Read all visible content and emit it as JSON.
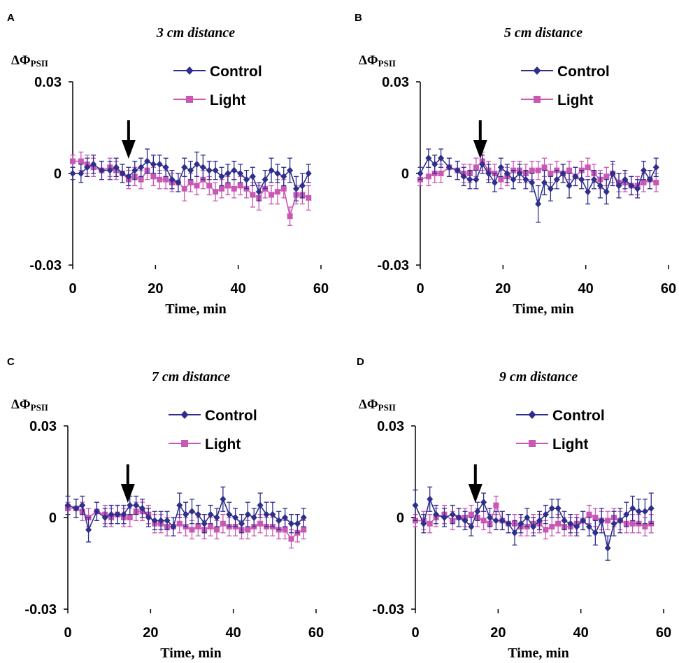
{
  "colors": {
    "control": "#2e2e8c",
    "light": "#c957b4",
    "arrow": "#000000",
    "axis": "#000000"
  },
  "chart_data": [
    {
      "type": "line",
      "panel": "A",
      "title": "3 cm distance",
      "ylabel_main": "ΔΦ",
      "ylabel_sub": "PSII",
      "xlabel": "Time, min",
      "xlim": [
        0,
        60
      ],
      "ylim": [
        -0.03,
        0.03
      ],
      "xticks": [
        "0",
        "20",
        "40",
        "60"
      ],
      "yticks": [
        "0.03",
        "0",
        "-0.03"
      ],
      "arrow_x": 13.5,
      "series": [
        {
          "name": "Control",
          "marker": "diamond",
          "x": [
            0,
            2,
            3.5,
            5,
            7,
            9,
            10.5,
            12,
            13.5,
            15,
            16.5,
            18,
            19.5,
            21,
            22.5,
            24,
            25.5,
            27,
            28.5,
            30,
            31.5,
            33,
            34.5,
            36,
            37.5,
            39,
            40.5,
            42,
            43.5,
            45,
            46.5,
            48,
            49.5,
            51,
            52.5,
            54,
            55.5,
            57
          ],
          "y": [
            0,
            0,
            0.002,
            0.003,
            0.001,
            0.001,
            0.002,
            0,
            -0.001,
            0.001,
            0.002,
            0.004,
            0.003,
            0.003,
            0.002,
            -0.002,
            -0.003,
            0.002,
            0.001,
            0.003,
            0.002,
            0.001,
            0.001,
            -0.001,
            0,
            0.001,
            0,
            -0.002,
            -0.001,
            -0.006,
            -0.002,
            0.001,
            0,
            -0.001,
            0.001,
            -0.005,
            -0.004,
            0
          ],
          "err": [
            0.002,
            0.003,
            0.003,
            0.003,
            0.003,
            0.003,
            0.003,
            0.003,
            0.003,
            0.003,
            0.003,
            0.004,
            0.003,
            0.003,
            0.003,
            0.003,
            0.003,
            0.003,
            0.003,
            0.004,
            0.004,
            0.003,
            0.003,
            0.003,
            0.003,
            0.003,
            0.003,
            0.003,
            0.003,
            0.003,
            0.003,
            0.004,
            0.003,
            0.003,
            0.004,
            0.004,
            0.004,
            0.003
          ]
        },
        {
          "name": "Light",
          "marker": "square",
          "x": [
            0,
            2,
            3.5,
            5,
            7,
            9,
            10.5,
            12,
            13.5,
            15,
            16.5,
            18,
            19.5,
            21,
            22.5,
            24,
            25.5,
            27,
            28.5,
            30,
            31.5,
            33,
            34.5,
            36,
            37.5,
            39,
            40.5,
            42,
            43.5,
            45,
            46.5,
            48,
            49.5,
            51,
            52.5,
            54,
            55.5,
            57
          ],
          "y": [
            0.004,
            0.004,
            0.003,
            0.002,
            0.001,
            0.002,
            0.001,
            0,
            -0.002,
            -0.001,
            -0.002,
            0.001,
            -0.001,
            -0.002,
            -0.002,
            -0.003,
            -0.003,
            -0.005,
            -0.003,
            -0.004,
            -0.002,
            -0.004,
            -0.006,
            -0.005,
            -0.004,
            -0.005,
            -0.004,
            -0.005,
            -0.007,
            -0.008,
            -0.005,
            -0.007,
            -0.006,
            -0.005,
            -0.014,
            -0.007,
            -0.007,
            -0.008
          ],
          "err": [
            0.002,
            0.003,
            0.003,
            0.003,
            0.003,
            0.003,
            0.003,
            0.003,
            0.003,
            0.003,
            0.003,
            0.003,
            0.003,
            0.003,
            0.003,
            0.003,
            0.003,
            0.004,
            0.003,
            0.003,
            0.003,
            0.003,
            0.003,
            0.003,
            0.003,
            0.003,
            0.003,
            0.003,
            0.004,
            0.004,
            0.003,
            0.003,
            0.004,
            0.003,
            0.003,
            0.003,
            0.003,
            0.004
          ]
        }
      ]
    },
    {
      "type": "line",
      "panel": "B",
      "title": "5 cm distance",
      "ylabel_main": "ΔΦ",
      "ylabel_sub": "PSII",
      "xlabel": "Time, min",
      "xlim": [
        0,
        60
      ],
      "ylim": [
        -0.03,
        0.03
      ],
      "xticks": [
        "0",
        "20",
        "40",
        "60"
      ],
      "yticks": [
        "0.03",
        "0",
        "-0.03"
      ],
      "arrow_x": 14.5,
      "series": [
        {
          "name": "Control",
          "marker": "diamond",
          "x": [
            0,
            2,
            3.5,
            5,
            7,
            9,
            10.5,
            12,
            13.5,
            15,
            16.5,
            18,
            19.5,
            21,
            22.5,
            24,
            25.5,
            27,
            28.5,
            30,
            31.5,
            33,
            34.5,
            36,
            37.5,
            39,
            40.5,
            42,
            43.5,
            45,
            46.5,
            48,
            49.5,
            51,
            52.5,
            54,
            55.5,
            57
          ],
          "y": [
            0,
            0.005,
            0.003,
            0.005,
            0.002,
            0.001,
            -0.001,
            -0.002,
            -0.002,
            0.003,
            0,
            -0.003,
            0.002,
            0,
            -0.002,
            0,
            -0.002,
            -0.003,
            -0.01,
            -0.003,
            -0.005,
            -0.002,
            0,
            -0.004,
            -0.001,
            -0.002,
            -0.006,
            -0.002,
            -0.004,
            -0.006,
            0,
            -0.004,
            -0.002,
            -0.004,
            -0.005,
            0.001,
            -0.002,
            0.002
          ],
          "err": [
            0.002,
            0.003,
            0.003,
            0.003,
            0.003,
            0.003,
            0.003,
            0.003,
            0.003,
            0.003,
            0.003,
            0.003,
            0.003,
            0.003,
            0.003,
            0.003,
            0.003,
            0.003,
            0.006,
            0.004,
            0.004,
            0.003,
            0.003,
            0.004,
            0.003,
            0.003,
            0.004,
            0.003,
            0.004,
            0.004,
            0.004,
            0.004,
            0.003,
            0.003,
            0.003,
            0.003,
            0.003,
            0.003
          ]
        },
        {
          "name": "Light",
          "marker": "square",
          "x": [
            0,
            2,
            3.5,
            5,
            7,
            9,
            10.5,
            12,
            13.5,
            15,
            16.5,
            18,
            19.5,
            21,
            22.5,
            24,
            25.5,
            27,
            28.5,
            30,
            31.5,
            33,
            34.5,
            36,
            37.5,
            39,
            40.5,
            42,
            43.5,
            45,
            46.5,
            48,
            49.5,
            51,
            52.5,
            54,
            55.5,
            57
          ],
          "y": [
            -0.002,
            -0.001,
            0,
            0,
            0.002,
            0.001,
            0,
            0,
            0.002,
            0.004,
            0.001,
            0,
            -0.002,
            -0.001,
            0.001,
            0.001,
            0,
            0.001,
            0.001,
            0.002,
            0,
            0.001,
            0,
            0.001,
            -0.001,
            0.001,
            0.002,
            0,
            -0.002,
            -0.001,
            0,
            -0.003,
            -0.003,
            -0.004,
            -0.004,
            -0.003,
            -0.002,
            -0.003
          ],
          "err": [
            0.002,
            0.003,
            0.003,
            0.003,
            0.003,
            0.003,
            0.003,
            0.003,
            0.003,
            0.003,
            0.003,
            0.003,
            0.003,
            0.003,
            0.003,
            0.003,
            0.003,
            0.003,
            0.003,
            0.003,
            0.003,
            0.003,
            0.003,
            0.003,
            0.003,
            0.003,
            0.003,
            0.003,
            0.003,
            0.003,
            0.003,
            0.003,
            0.003,
            0.003,
            0.003,
            0.003,
            0.003,
            0.003
          ]
        }
      ]
    },
    {
      "type": "line",
      "panel": "C",
      "title": "7 cm distance",
      "ylabel_main": "ΔΦ",
      "ylabel_sub": "PSII",
      "xlabel": "Time, min",
      "xlim": [
        0,
        60
      ],
      "ylim": [
        -0.03,
        0.03
      ],
      "xticks": [
        "0",
        "20",
        "40",
        "60"
      ],
      "yticks": [
        "0.03",
        "0",
        "-0.03"
      ],
      "arrow_x": 14.5,
      "series": [
        {
          "name": "Control",
          "marker": "diamond",
          "x": [
            0,
            2,
            3.5,
            5,
            7,
            9,
            10.5,
            12,
            13.5,
            15,
            16.5,
            18,
            19.5,
            21,
            22.5,
            24,
            25.5,
            27,
            28.5,
            30,
            31.5,
            33,
            34.5,
            36,
            37.5,
            39,
            40.5,
            42,
            43.5,
            45,
            46.5,
            48,
            49.5,
            51,
            52.5,
            54,
            55.5,
            57
          ],
          "y": [
            0.004,
            0.003,
            0.004,
            -0.004,
            0.002,
            0,
            0.001,
            0.001,
            0.001,
            0.004,
            0.004,
            0.003,
            0,
            -0.001,
            -0.001,
            -0.001,
            -0.003,
            0.004,
            0.001,
            0.002,
            0.001,
            -0.002,
            0.001,
            0,
            0.006,
            0.001,
            0,
            -0.002,
            0.001,
            0,
            0.004,
            0.001,
            0.001,
            -0.001,
            0,
            -0.002,
            -0.002,
            0
          ],
          "err": [
            0.003,
            0.003,
            0.003,
            0.004,
            0.003,
            0.003,
            0.003,
            0.003,
            0.003,
            0.003,
            0.003,
            0.003,
            0.003,
            0.003,
            0.003,
            0.003,
            0.003,
            0.004,
            0.004,
            0.004,
            0.003,
            0.003,
            0.003,
            0.003,
            0.004,
            0.004,
            0.003,
            0.003,
            0.004,
            0.003,
            0.004,
            0.004,
            0.004,
            0.003,
            0.003,
            0.003,
            0.003,
            0.003
          ]
        },
        {
          "name": "Light",
          "marker": "square",
          "x": [
            0,
            2,
            3.5,
            5,
            7,
            9,
            10.5,
            12,
            13.5,
            15,
            16.5,
            18,
            19.5,
            21,
            22.5,
            24,
            25.5,
            27,
            28.5,
            30,
            31.5,
            33,
            34.5,
            36,
            37.5,
            39,
            40.5,
            42,
            43.5,
            45,
            46.5,
            48,
            49.5,
            51,
            52.5,
            54,
            55.5,
            57
          ],
          "y": [
            0.003,
            0.003,
            0.002,
            0,
            0.002,
            0.001,
            0,
            0.001,
            0,
            0,
            0.002,
            0.002,
            0.001,
            -0.002,
            -0.002,
            -0.003,
            -0.003,
            -0.002,
            -0.003,
            -0.004,
            -0.003,
            -0.004,
            -0.003,
            -0.004,
            -0.002,
            -0.003,
            -0.003,
            -0.004,
            -0.004,
            -0.003,
            -0.002,
            -0.003,
            -0.003,
            -0.004,
            -0.004,
            -0.007,
            -0.005,
            -0.004
          ],
          "err": [
            0.002,
            0.003,
            0.003,
            0.003,
            0.003,
            0.003,
            0.003,
            0.003,
            0.003,
            0.003,
            0.003,
            0.003,
            0.003,
            0.003,
            0.003,
            0.003,
            0.003,
            0.003,
            0.003,
            0.003,
            0.003,
            0.003,
            0.003,
            0.003,
            0.003,
            0.003,
            0.003,
            0.003,
            0.003,
            0.003,
            0.003,
            0.003,
            0.003,
            0.003,
            0.003,
            0.003,
            0.003,
            0.003
          ]
        }
      ]
    },
    {
      "type": "line",
      "panel": "D",
      "title": "9 cm distance",
      "ylabel_main": "ΔΦ",
      "ylabel_sub": "PSII",
      "xlabel": "Time, min",
      "xlim": [
        0,
        60
      ],
      "ylim": [
        -0.03,
        0.03
      ],
      "xticks": [
        "0",
        "20",
        "40",
        "60"
      ],
      "yticks": [
        "0.03",
        "0",
        "-0.03"
      ],
      "arrow_x": 14.5,
      "series": [
        {
          "name": "Control",
          "marker": "diamond",
          "x": [
            0,
            2,
            3.5,
            5,
            7,
            9,
            10.5,
            12,
            13.5,
            15,
            16.5,
            18,
            19.5,
            21,
            22.5,
            24,
            25.5,
            27,
            28.5,
            30,
            31.5,
            33,
            34.5,
            36,
            37.5,
            39,
            40.5,
            42,
            43.5,
            45,
            46.5,
            48,
            49.5,
            51,
            52.5,
            54,
            55.5,
            57
          ],
          "y": [
            0.004,
            -0.002,
            0.006,
            0.001,
            0,
            0.001,
            0,
            -0.001,
            -0.003,
            0.002,
            0.005,
            0,
            -0.001,
            -0.001,
            -0.002,
            -0.005,
            -0.002,
            0,
            -0.003,
            -0.001,
            0.001,
            0.003,
            0.003,
            -0.001,
            -0.002,
            -0.003,
            -0.001,
            -0.003,
            -0.005,
            -0.001,
            -0.01,
            -0.002,
            -0.001,
            0.001,
            0.003,
            0.002,
            0.002,
            0.003
          ],
          "err": [
            0.005,
            0.003,
            0.004,
            0.003,
            0.003,
            0.003,
            0.003,
            0.003,
            0.003,
            0.003,
            0.003,
            0.003,
            0.003,
            0.003,
            0.003,
            0.004,
            0.003,
            0.003,
            0.003,
            0.003,
            0.003,
            0.003,
            0.003,
            0.003,
            0.003,
            0.003,
            0.003,
            0.003,
            0.004,
            0.004,
            0.004,
            0.004,
            0.004,
            0.004,
            0.004,
            0.004,
            0.004,
            0.005
          ]
        },
        {
          "name": "Light",
          "marker": "square",
          "x": [
            0,
            2,
            3.5,
            5,
            7,
            9,
            10.5,
            12,
            13.5,
            15,
            16.5,
            18,
            19.5,
            21,
            22.5,
            24,
            25.5,
            27,
            28.5,
            30,
            31.5,
            33,
            34.5,
            36,
            37.5,
            39,
            40.5,
            42,
            43.5,
            45,
            46.5,
            48,
            49.5,
            51,
            52.5,
            54,
            55.5,
            57
          ],
          "y": [
            -0.001,
            -0.001,
            -0.002,
            0,
            0.001,
            -0.001,
            0,
            0,
            0.001,
            0,
            -0.001,
            -0.002,
            0.004,
            -0.001,
            -0.002,
            -0.002,
            -0.003,
            -0.003,
            -0.002,
            -0.002,
            -0.004,
            -0.003,
            -0.002,
            -0.003,
            -0.003,
            -0.002,
            -0.001,
            0.001,
            0,
            -0.001,
            -0.001,
            0,
            -0.001,
            -0.002,
            -0.002,
            -0.002,
            -0.003,
            -0.002
          ],
          "err": [
            0.002,
            0.003,
            0.003,
            0.003,
            0.003,
            0.003,
            0.003,
            0.003,
            0.003,
            0.003,
            0.003,
            0.003,
            0.003,
            0.003,
            0.003,
            0.003,
            0.003,
            0.003,
            0.003,
            0.003,
            0.003,
            0.003,
            0.003,
            0.003,
            0.003,
            0.003,
            0.003,
            0.003,
            0.003,
            0.003,
            0.003,
            0.003,
            0.003,
            0.003,
            0.003,
            0.003,
            0.003,
            0.003
          ]
        }
      ]
    }
  ]
}
